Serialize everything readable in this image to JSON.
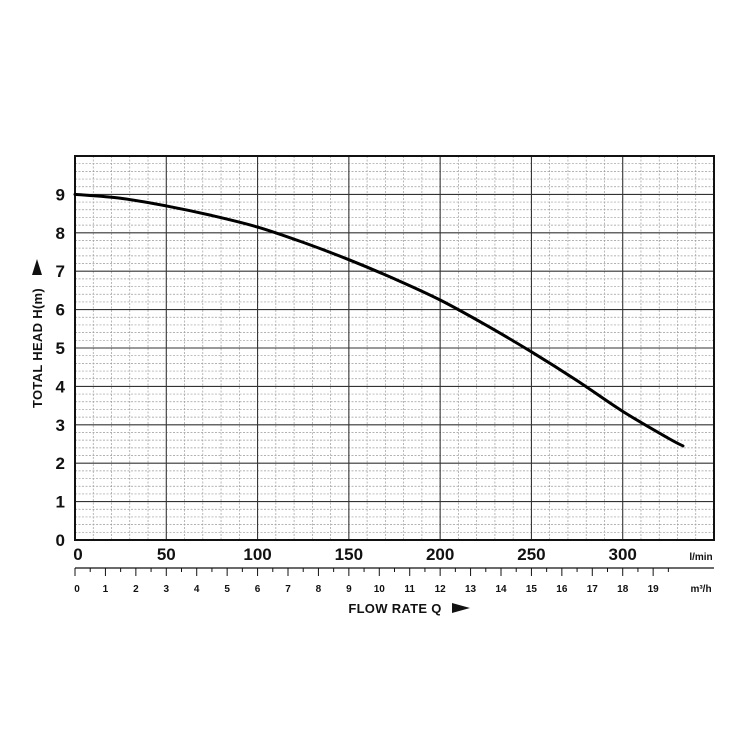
{
  "chart_data": {
    "type": "line",
    "title": "",
    "xlabel": "FLOW RATE Q",
    "ylabel": "TOTAL HEAD H(m)",
    "x_units": "l/min",
    "x2_units": "m³/h",
    "xlim": [
      0,
      350
    ],
    "ylim": [
      0,
      10
    ],
    "x_ticks": [
      0,
      50,
      100,
      150,
      200,
      250,
      300
    ],
    "x2_ticks": [
      0,
      1,
      2,
      3,
      4,
      5,
      6,
      7,
      8,
      9,
      10,
      11,
      12,
      13,
      14,
      15,
      16,
      17,
      18,
      19
    ],
    "y_ticks": [
      0,
      1,
      2,
      3,
      4,
      5,
      6,
      7,
      8,
      9
    ],
    "grid": true,
    "series": [
      {
        "x": [
          0,
          25,
          50,
          75,
          100,
          125,
          150,
          175,
          200,
          225,
          250,
          275,
          300,
          325,
          333
        ],
        "y": [
          9.0,
          8.9,
          8.7,
          8.45,
          8.15,
          7.75,
          7.3,
          6.8,
          6.25,
          5.6,
          4.9,
          4.15,
          3.35,
          2.65,
          2.45
        ]
      }
    ]
  }
}
